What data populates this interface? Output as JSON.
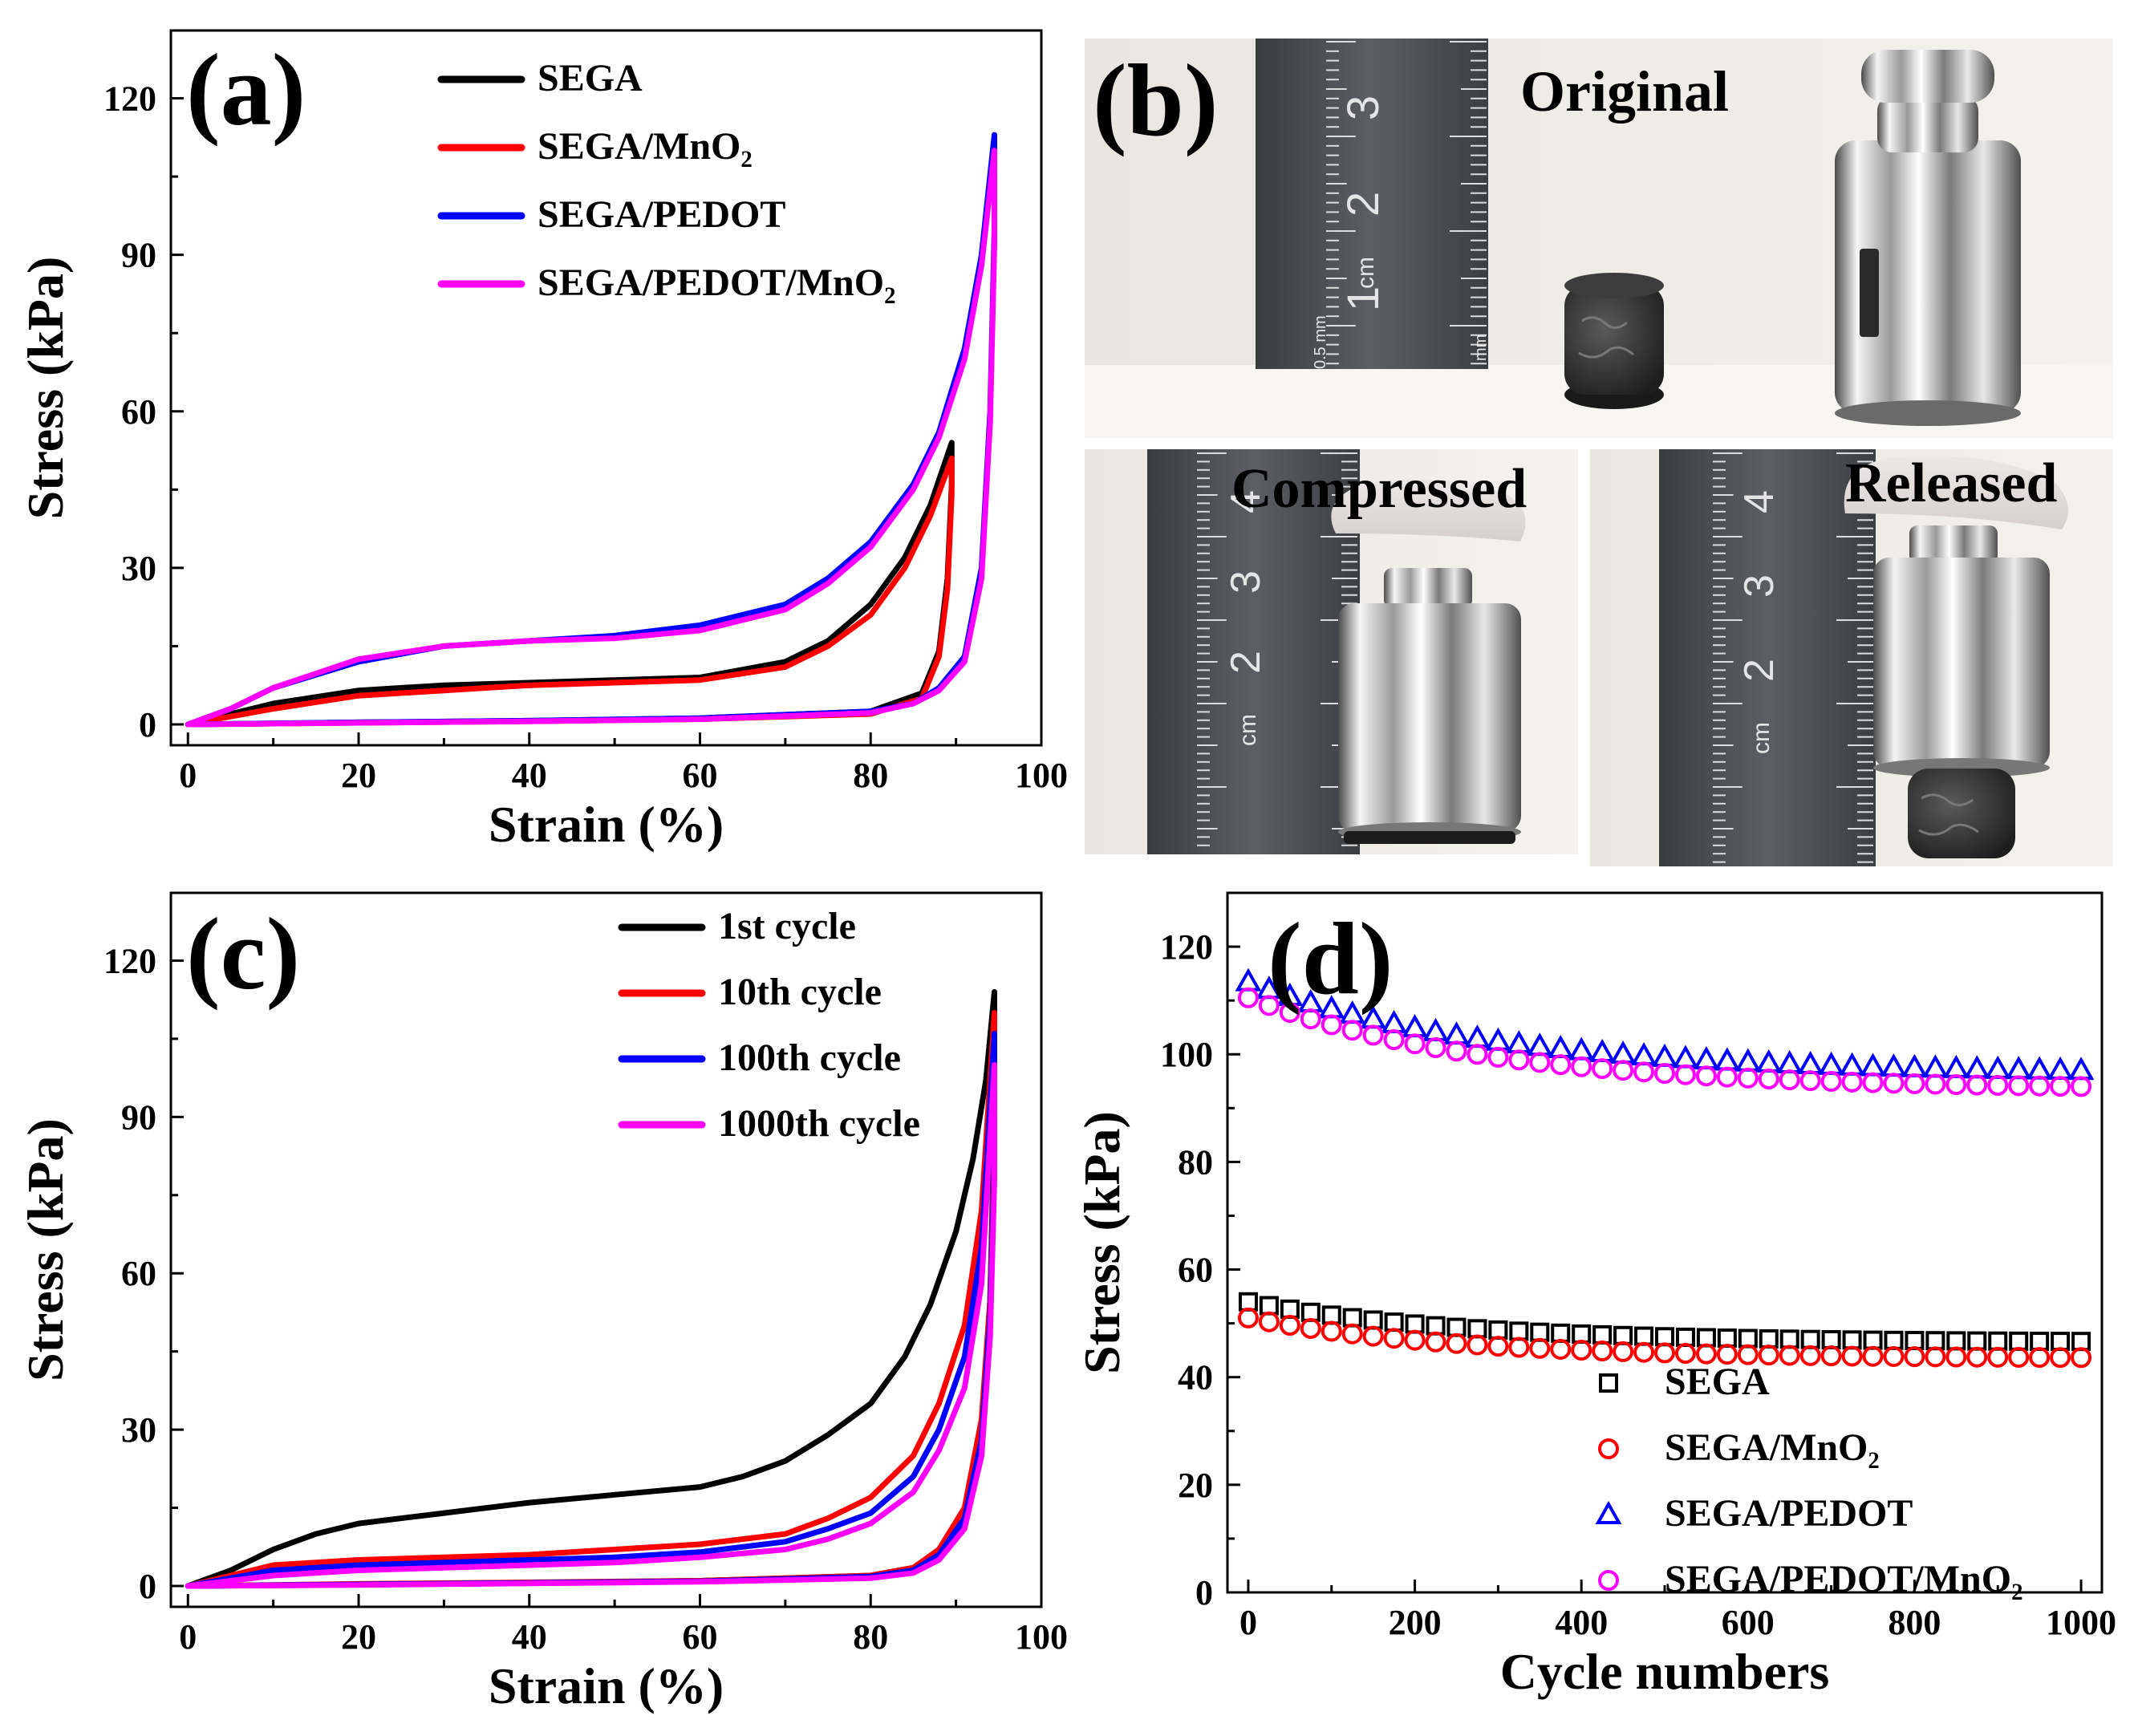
{
  "chart_data": [
    {
      "panel": "(a)",
      "type": "line",
      "xlabel": "Strain (%)",
      "ylabel": "Stress (kPa)",
      "xlim": [
        -2,
        100
      ],
      "ylim": [
        -4,
        133
      ],
      "xticks": [
        0,
        20,
        40,
        60,
        80,
        100
      ],
      "yticks": [
        0,
        30,
        60,
        90,
        120
      ],
      "series": [
        {
          "name": "SEGA",
          "color": "#000000",
          "x": [
            0,
            5,
            10,
            20,
            30,
            40,
            50,
            60,
            70,
            75,
            80,
            84,
            87,
            89.5,
            89.5,
            89,
            88,
            86,
            80,
            60,
            40,
            20,
            0
          ],
          "y": [
            0,
            2,
            4,
            6.5,
            7.5,
            8,
            8.5,
            9,
            12,
            16,
            23,
            32,
            42,
            54,
            46,
            28,
            14,
            6,
            2.5,
            1.2,
            0.7,
            0.4,
            0
          ]
        },
        {
          "name": "SEGA/MnO2",
          "label": "SEGA/MnO₂",
          "color": "#ff0000",
          "x": [
            0,
            5,
            10,
            20,
            30,
            40,
            50,
            60,
            70,
            75,
            80,
            84,
            87,
            89.5,
            89.5,
            89,
            88,
            86,
            80,
            60,
            40,
            20,
            0
          ],
          "y": [
            0,
            1.5,
            3,
            5.5,
            6.5,
            7.5,
            8,
            8.5,
            11,
            15,
            21,
            30,
            40,
            51,
            44,
            26,
            13,
            5,
            2,
            1,
            0.6,
            0.3,
            0
          ]
        },
        {
          "name": "SEGA/PEDOT",
          "color": "#0000ff",
          "x": [
            0,
            5,
            10,
            20,
            30,
            40,
            50,
            60,
            70,
            75,
            80,
            85,
            88,
            91,
            93,
            94.5,
            94.5,
            94,
            93,
            91,
            88,
            85,
            80,
            60,
            40,
            20,
            0
          ],
          "y": [
            0,
            3,
            7,
            12,
            15,
            16,
            17,
            19,
            23,
            28,
            35,
            46,
            56,
            72,
            90,
            113,
            95,
            60,
            30,
            13,
            7,
            4,
            2.5,
            1.2,
            0.7,
            0.4,
            0
          ]
        },
        {
          "name": "SEGA/PEDOT/MnO2",
          "label": "SEGA/PEDOT/MnO₂",
          "color": "#ff00ff",
          "x": [
            0,
            5,
            10,
            20,
            30,
            40,
            50,
            60,
            70,
            75,
            80,
            85,
            88,
            91,
            93,
            94.5,
            94.5,
            94,
            93,
            91,
            88,
            85,
            80,
            60,
            40,
            20,
            0
          ],
          "y": [
            0,
            3,
            7,
            12.5,
            15,
            16,
            16.5,
            18,
            22,
            27,
            34,
            45,
            55,
            70,
            88,
            110,
            92,
            58,
            28,
            12,
            6.5,
            4,
            2.2,
            1,
            0.6,
            0.3,
            0
          ]
        }
      ]
    },
    {
      "panel": "(c)",
      "type": "line",
      "xlabel": "Strain (%)",
      "ylabel": "Stress (kPa)",
      "xlim": [
        -2,
        100
      ],
      "ylim": [
        -4,
        133
      ],
      "xticks": [
        0,
        20,
        40,
        60,
        80,
        100
      ],
      "yticks": [
        0,
        30,
        60,
        90,
        120
      ],
      "series": [
        {
          "name": "1st cycle",
          "color": "#000000",
          "x": [
            0,
            5,
            10,
            15,
            20,
            30,
            40,
            50,
            60,
            65,
            70,
            75,
            80,
            84,
            87,
            90,
            92,
            93.5,
            94.5,
            94.5,
            94,
            93,
            91,
            88,
            85,
            80,
            60,
            40,
            20,
            0
          ],
          "y": [
            0,
            3,
            7,
            10,
            12,
            14,
            16,
            17.5,
            19,
            21,
            24,
            29,
            35,
            44,
            54,
            68,
            82,
            97,
            114,
            90,
            55,
            25,
            12,
            6,
            3.5,
            2,
            1,
            0.6,
            0.3,
            0
          ]
        },
        {
          "name": "10th cycle",
          "color": "#ff0000",
          "x": [
            0,
            5,
            10,
            20,
            30,
            40,
            50,
            60,
            70,
            75,
            80,
            85,
            88,
            91,
            93,
            94.5,
            94.5,
            94,
            93,
            91,
            88,
            85,
            80,
            60,
            40,
            20,
            0
          ],
          "y": [
            0,
            2,
            4,
            5,
            5.5,
            6,
            7,
            8,
            10,
            13,
            17,
            25,
            35,
            50,
            72,
            110,
            85,
            55,
            32,
            15,
            7,
            3.5,
            2,
            1,
            0.7,
            0.4,
            0
          ]
        },
        {
          "name": "100th cycle",
          "color": "#0000ff",
          "x": [
            0,
            5,
            10,
            20,
            30,
            40,
            50,
            60,
            70,
            75,
            80,
            85,
            88,
            91,
            93,
            94.5,
            94.5,
            94,
            93,
            91,
            88,
            85,
            80,
            60,
            40,
            20,
            0
          ],
          "y": [
            0,
            1.5,
            3,
            4,
            4.5,
            5,
            5.5,
            6.5,
            8.5,
            11,
            14,
            21,
            30,
            44,
            65,
            106,
            82,
            52,
            28,
            13,
            6,
            3,
            1.8,
            0.9,
            0.6,
            0.3,
            0
          ]
        },
        {
          "name": "1000th cycle",
          "color": "#ff00ff",
          "x": [
            0,
            5,
            10,
            20,
            30,
            40,
            50,
            60,
            70,
            75,
            80,
            85,
            88,
            91,
            93,
            94.5,
            94.5,
            94,
            93,
            91,
            88,
            85,
            80,
            60,
            40,
            20,
            0
          ],
          "y": [
            0,
            1,
            2,
            3,
            3.5,
            4,
            4.5,
            5.5,
            7,
            9,
            12,
            18,
            26,
            38,
            58,
            100,
            78,
            48,
            25,
            11,
            5,
            2.5,
            1.5,
            0.8,
            0.5,
            0.2,
            0
          ]
        }
      ]
    },
    {
      "panel": "(d)",
      "type": "scatter",
      "xlabel": "Cycle numbers",
      "ylabel": "Stress (kPa)",
      "xlim": [
        -25,
        1025
      ],
      "ylim": [
        0,
        130
      ],
      "xticks": [
        0,
        200,
        400,
        600,
        800,
        1000
      ],
      "yticks": [
        0,
        20,
        40,
        60,
        80,
        100,
        120
      ],
      "series": [
        {
          "name": "SEGA",
          "marker": "square",
          "color": "#000000",
          "start": 54,
          "end": 46.5,
          "rate": 0.004
        },
        {
          "name": "SEGA/MnO2",
          "label": "SEGA/MnO₂",
          "marker": "circle",
          "color": "#ff0000",
          "start": 51,
          "end": 43.5,
          "rate": 0.004
        },
        {
          "name": "SEGA/PEDOT",
          "marker": "triangle",
          "color": "#0000ff",
          "start": 113.5,
          "end": 96.5,
          "rate": 0.0035
        },
        {
          "name": "SEGA/PEDOT/MnO2",
          "label": "SEGA/PEDOT/MnO₂",
          "marker": "circle",
          "color": "#ff00ff",
          "start": 110.5,
          "end": 93.5,
          "rate": 0.0035
        }
      ],
      "x_step": 25
    }
  ],
  "photos": {
    "panel": "(b)",
    "captions": {
      "original": "Original",
      "compressed": "Compressed",
      "released": "Released"
    },
    "ruler_text": {
      "cm": "cm",
      "half_mm": "0.5 mm",
      "mm": "mm"
    }
  }
}
